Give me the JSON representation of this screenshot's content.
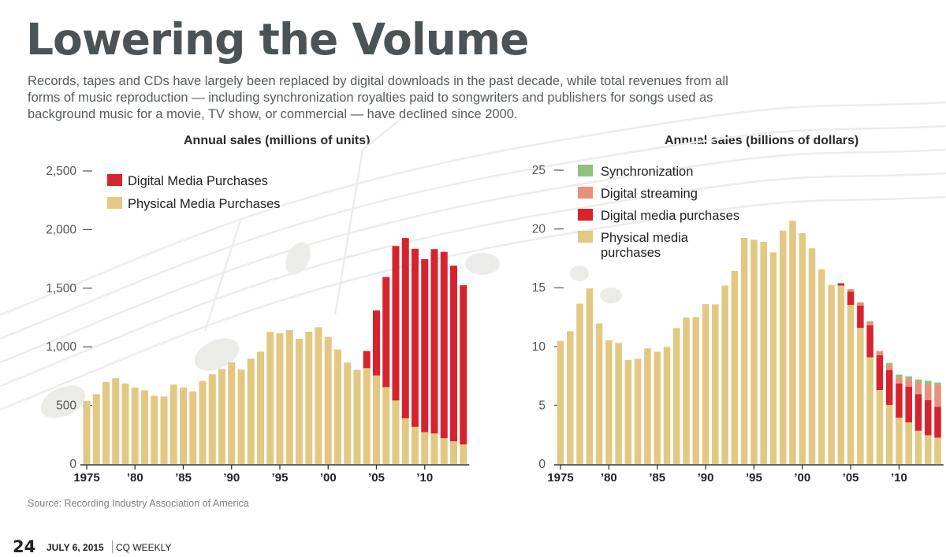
{
  "header": {
    "title": "Lowering the Volume",
    "subtitle": "Records, tapes and CDs have largely been replaced by digital downloads in the past decade, while total revenues from all forms of music reproduction — including synchronization royalties paid to songwriters and publishers for songs used as background music for a movie, TV show, or commercial — have declined since 2000."
  },
  "footer": {
    "source": "Source: Recording Industry Association of America",
    "page_number": "24",
    "date": "JULY 6, 2015",
    "publication": "CQ WEEKLY"
  },
  "colors": {
    "physical": "#e2c882",
    "digital": "#d7232e",
    "streaming": "#e8907a",
    "sync": "#8fc07f",
    "axis": "#333333"
  },
  "chart_data": [
    {
      "type": "bar",
      "stacked": true,
      "title": "Annual sales (millions of units)",
      "xlabel": "",
      "ylabel": "",
      "ylim": [
        0,
        2500
      ],
      "yticks": [
        0,
        500,
        1000,
        1500,
        2000,
        2500
      ],
      "ytick_labels": [
        "0",
        "500",
        "1,000",
        "1,500",
        "2,000",
        "2,500"
      ],
      "xtick_labels": [
        "1975",
        "’80",
        "’85",
        "’90",
        "’95",
        "’00",
        "’05",
        "’10"
      ],
      "legend_position": "top-left",
      "x": [
        1975,
        1976,
        1977,
        1978,
        1979,
        1980,
        1981,
        1982,
        1983,
        1984,
        1985,
        1986,
        1987,
        1988,
        1989,
        1990,
        1991,
        1992,
        1993,
        1994,
        1995,
        1996,
        1997,
        1998,
        1999,
        2000,
        2001,
        2002,
        2003,
        2004,
        2005,
        2006,
        2007,
        2008,
        2009,
        2010,
        2011,
        2012,
        2013,
        2014
      ],
      "series": [
        {
          "name": "Physical Media Purchases",
          "color_key": "physical",
          "values": [
            537,
            596,
            700,
            732,
            687,
            653,
            629,
            582,
            575,
            678,
            653,
            620,
            709,
            765,
            810,
            868,
            805,
            899,
            959,
            1127,
            1116,
            1144,
            1069,
            1129,
            1167,
            1084,
            977,
            865,
            803,
            818,
            756,
            656,
            542,
            390,
            317,
            272,
            261,
            221,
            194,
            167
          ]
        },
        {
          "name": "Digital Media Purchases",
          "color_key": "digital",
          "values": [
            0,
            0,
            0,
            0,
            0,
            0,
            0,
            0,
            0,
            0,
            0,
            0,
            0,
            0,
            0,
            0,
            0,
            0,
            0,
            0,
            0,
            0,
            0,
            0,
            0,
            0,
            0,
            0,
            0,
            146,
            554,
            939,
            1318,
            1538,
            1519,
            1475,
            1572,
            1589,
            1498,
            1358
          ]
        }
      ]
    },
    {
      "type": "bar",
      "stacked": true,
      "title": "Annual sales (billions of dollars)",
      "xlabel": "",
      "ylabel": "",
      "ylim": [
        0,
        25
      ],
      "yticks": [
        0,
        5,
        10,
        15,
        20,
        25
      ],
      "ytick_labels": [
        "0",
        "5",
        "10",
        "15",
        "20",
        "25"
      ],
      "xtick_labels": [
        "1975",
        "’80",
        "’85",
        "’90",
        "’95",
        "’00",
        "’05",
        "’10"
      ],
      "legend_position": "top-left",
      "x": [
        1975,
        1976,
        1977,
        1978,
        1979,
        1980,
        1981,
        1982,
        1983,
        1984,
        1985,
        1986,
        1987,
        1988,
        1989,
        1990,
        1991,
        1992,
        1993,
        1994,
        1995,
        1996,
        1997,
        1998,
        1999,
        2000,
        2001,
        2002,
        2003,
        2004,
        2005,
        2006,
        2007,
        2008,
        2009,
        2010,
        2011,
        2012,
        2013,
        2014
      ],
      "series": [
        {
          "name": "Physical media purchases",
          "color_key": "physical",
          "values": [
            10.47,
            11.3,
            13.65,
            14.94,
            11.96,
            10.53,
            10.3,
            8.86,
            8.95,
            9.84,
            9.55,
            9.97,
            11.56,
            12.47,
            12.5,
            13.6,
            13.58,
            15.18,
            16.43,
            19.24,
            19.08,
            18.9,
            18.0,
            19.86,
            20.69,
            19.64,
            18.35,
            16.57,
            15.23,
            15.18,
            13.54,
            11.58,
            9.08,
            6.3,
            5.03,
            3.94,
            3.54,
            2.83,
            2.45,
            2.25
          ]
        },
        {
          "name": "Digital media purchases",
          "color_key": "digital",
          "values": [
            0,
            0,
            0,
            0,
            0,
            0,
            0,
            0,
            0,
            0,
            0,
            0,
            0,
            0,
            0,
            0,
            0,
            0,
            0,
            0,
            0,
            0,
            0,
            0,
            0,
            0,
            0,
            0,
            0,
            0.2,
            1.13,
            1.91,
            2.72,
            2.96,
            2.97,
            2.92,
            3.05,
            3.12,
            2.98,
            2.63
          ]
        },
        {
          "name": "Digital streaming",
          "color_key": "streaming",
          "values": [
            0,
            0,
            0,
            0,
            0,
            0,
            0,
            0,
            0,
            0,
            0,
            0,
            0,
            0,
            0,
            0,
            0,
            0,
            0,
            0,
            0,
            0,
            0,
            0,
            0,
            0,
            0,
            0,
            0,
            0,
            0.2,
            0.27,
            0.34,
            0.36,
            0.37,
            0.49,
            0.64,
            1.02,
            1.4,
            1.85
          ]
        },
        {
          "name": "Synchronization",
          "color_key": "sync",
          "values": [
            0,
            0,
            0,
            0,
            0,
            0,
            0,
            0,
            0,
            0,
            0,
            0,
            0,
            0,
            0,
            0,
            0,
            0,
            0,
            0,
            0,
            0,
            0,
            0,
            0,
            0,
            0,
            0,
            0,
            0,
            0,
            0,
            0,
            0,
            0.23,
            0.25,
            0.23,
            0.22,
            0.25,
            0.2
          ]
        }
      ],
      "legend": [
        "Synchronization",
        "Digital streaming",
        "Digital media purchases",
        "Physical media purchases"
      ]
    }
  ]
}
